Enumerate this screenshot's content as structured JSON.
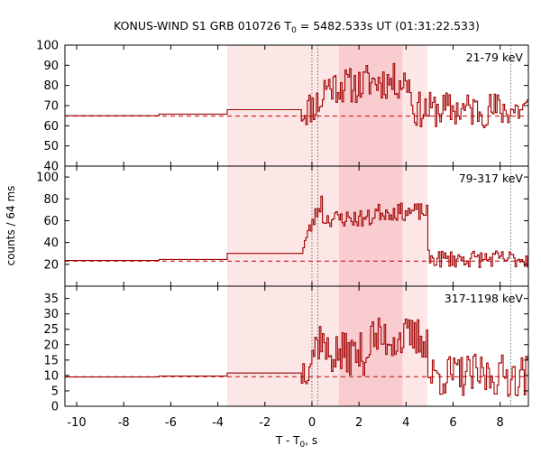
{
  "chart_data": {
    "type": "line",
    "title": "KONUS-WIND S1 GRB 010726 T",
    "title_sub": "0",
    "title_rest": " = 5482.533s UT (01:31:22.533)",
    "xlabel": "T - T",
    "xlabel_sub": "0",
    "xlabel_rest": ", s",
    "ylabel": "counts / 64 ms",
    "xlim": [
      -10.5,
      9.2
    ],
    "xticks": [
      -10,
      -8,
      -6,
      -4,
      -2,
      0,
      2,
      4,
      6,
      8
    ],
    "colors": {
      "line": "#a00000",
      "background": "#cc0000",
      "band_light": "#fde6e6",
      "band_dark": "#f9cdd0",
      "marker": "#555555"
    },
    "shaded_intervals": [
      {
        "x": [
          -3.6,
          4.9
        ],
        "style": "light"
      },
      {
        "x": [
          1.15,
          3.85
        ],
        "style": "dark"
      }
    ],
    "marker_lines_x": [
      0.0,
      0.25,
      8.45
    ],
    "panels": [
      {
        "label": "21-79 keV",
        "ylim": [
          40,
          100
        ],
        "yticks": [
          40,
          50,
          60,
          70,
          80,
          90,
          100
        ],
        "background": 64.8,
        "steps": [
          {
            "x": [
              -10.5,
              -6.5
            ],
            "y": 65.0
          },
          {
            "x": [
              -6.5,
              -3.6
            ],
            "y": 65.8
          },
          {
            "x": [
              -3.6,
              -0.45
            ],
            "y": 68.0
          }
        ],
        "series": {
          "x_start": -0.45,
          "x_step": 0.064,
          "base": 67,
          "rise": 6,
          "rise_end": 0.5,
          "plateau": 80,
          "plateau_end": 2.2,
          "peak": 82,
          "peak_end": 4.2,
          "tail": 68,
          "noise": 9,
          "seed": 11
        }
      },
      {
        "label": "79-317 keV",
        "ylim": [
          0,
          110
        ],
        "yticks": [
          20,
          40,
          60,
          80,
          100
        ],
        "background": 23.0,
        "steps": [
          {
            "x": [
              -10.5,
              -6.5
            ],
            "y": 23.5
          },
          {
            "x": [
              -6.5,
              -3.6
            ],
            "y": 24.5
          },
          {
            "x": [
              -3.6,
              -0.45
            ],
            "y": 30.0
          }
        ],
        "series": {
          "x_start": -0.45,
          "x_step": 0.064,
          "base": 34,
          "rise": 45,
          "rise_end": 0.4,
          "plateau": 62,
          "plateau_end": 2.6,
          "peak": 68,
          "peak_end": 4.9,
          "tail": 25,
          "noise": 8,
          "seed": 23
        }
      },
      {
        "label": "317-1198 keV",
        "ylim": [
          0,
          39
        ],
        "yticks": [
          0,
          5,
          10,
          15,
          20,
          25,
          30,
          35
        ],
        "background": 9.6,
        "steps": [
          {
            "x": [
              -10.5,
              -6.5
            ],
            "y": 9.5
          },
          {
            "x": [
              -6.5,
              -3.6
            ],
            "y": 9.8
          },
          {
            "x": [
              -3.6,
              -0.45
            ],
            "y": 10.8
          }
        ],
        "series": {
          "x_start": -0.45,
          "x_step": 0.064,
          "base": 11,
          "rise": 14,
          "rise_end": 0.5,
          "plateau": 17,
          "plateau_end": 2.4,
          "peak": 22,
          "peak_end": 4.9,
          "tail": 10,
          "noise": 7,
          "seed": 37
        }
      }
    ]
  }
}
